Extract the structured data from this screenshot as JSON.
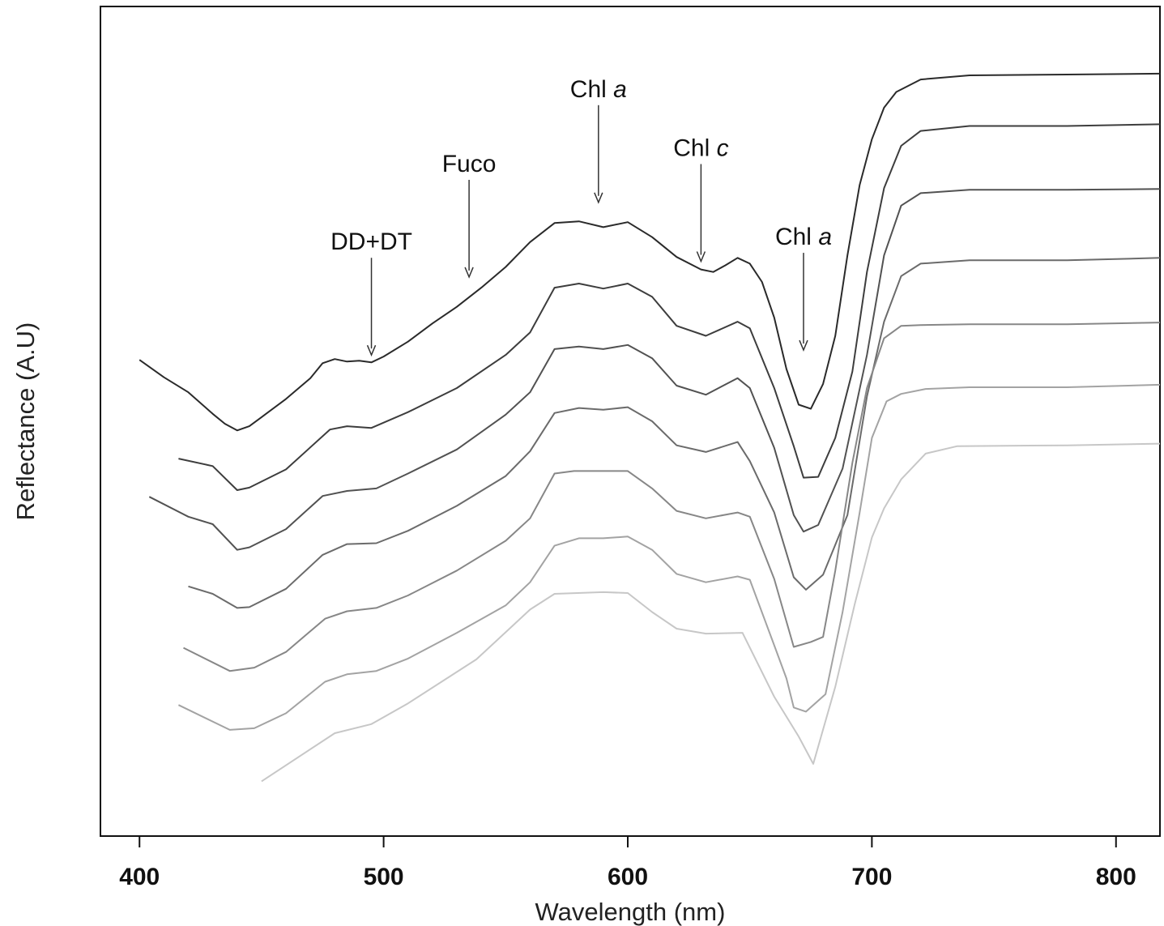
{
  "chart_data": {
    "type": "line",
    "title": "",
    "xlabel": "Wavelength (nm)",
    "ylabel": "Reflectance (A.U)",
    "xlim": [
      384,
      818
    ],
    "ylim": [
      0,
      1000
    ],
    "xticks": [
      400,
      500,
      600,
      700,
      800
    ],
    "grid": false,
    "legend": "none",
    "series": [
      {
        "color": "#2a2a2a",
        "points": [
          [
            400,
            574
          ],
          [
            410,
            553
          ],
          [
            420,
            535
          ],
          [
            430,
            509
          ],
          [
            435,
            497
          ],
          [
            440,
            489
          ],
          [
            445,
            494
          ],
          [
            450,
            505
          ],
          [
            460,
            527
          ],
          [
            470,
            552
          ],
          [
            475,
            570
          ],
          [
            480,
            575
          ],
          [
            485,
            572
          ],
          [
            490,
            573
          ],
          [
            495,
            571
          ],
          [
            500,
            578
          ],
          [
            510,
            596
          ],
          [
            520,
            618
          ],
          [
            530,
            638
          ],
          [
            540,
            661
          ],
          [
            550,
            686
          ],
          [
            560,
            716
          ],
          [
            570,
            739
          ],
          [
            580,
            741
          ],
          [
            590,
            734
          ],
          [
            600,
            740
          ],
          [
            610,
            722
          ],
          [
            620,
            698
          ],
          [
            630,
            683
          ],
          [
            635,
            680
          ],
          [
            640,
            688
          ],
          [
            645,
            697
          ],
          [
            650,
            690
          ],
          [
            655,
            668
          ],
          [
            660,
            625
          ],
          [
            665,
            563
          ],
          [
            670,
            520
          ],
          [
            675,
            515
          ],
          [
            680,
            545
          ],
          [
            685,
            603
          ],
          [
            690,
            700
          ],
          [
            695,
            785
          ],
          [
            700,
            840
          ],
          [
            705,
            878
          ],
          [
            710,
            897
          ],
          [
            720,
            912
          ],
          [
            740,
            917
          ],
          [
            780,
            918
          ],
          [
            818,
            919
          ]
        ]
      },
      {
        "color": "#3d3d3d",
        "points": [
          [
            416,
            455
          ],
          [
            430,
            446
          ],
          [
            440,
            417
          ],
          [
            445,
            420
          ],
          [
            460,
            442
          ],
          [
            478,
            490
          ],
          [
            485,
            494
          ],
          [
            495,
            492
          ],
          [
            510,
            511
          ],
          [
            530,
            540
          ],
          [
            550,
            580
          ],
          [
            560,
            607
          ],
          [
            570,
            661
          ],
          [
            580,
            666
          ],
          [
            590,
            660
          ],
          [
            600,
            666
          ],
          [
            610,
            650
          ],
          [
            620,
            615
          ],
          [
            632,
            603
          ],
          [
            645,
            620
          ],
          [
            650,
            612
          ],
          [
            660,
            540
          ],
          [
            668,
            470
          ],
          [
            672,
            432
          ],
          [
            678,
            433
          ],
          [
            685,
            480
          ],
          [
            692,
            560
          ],
          [
            698,
            680
          ],
          [
            705,
            781
          ],
          [
            712,
            832
          ],
          [
            720,
            850
          ],
          [
            740,
            856
          ],
          [
            780,
            856
          ],
          [
            818,
            858
          ]
        ]
      },
      {
        "color": "#525252",
        "points": [
          [
            404,
            409
          ],
          [
            420,
            385
          ],
          [
            430,
            376
          ],
          [
            440,
            345
          ],
          [
            445,
            348
          ],
          [
            460,
            370
          ],
          [
            475,
            410
          ],
          [
            485,
            416
          ],
          [
            497,
            419
          ],
          [
            510,
            437
          ],
          [
            530,
            466
          ],
          [
            550,
            508
          ],
          [
            560,
            535
          ],
          [
            570,
            587
          ],
          [
            580,
            590
          ],
          [
            590,
            587
          ],
          [
            600,
            592
          ],
          [
            610,
            576
          ],
          [
            620,
            543
          ],
          [
            632,
            532
          ],
          [
            645,
            552
          ],
          [
            650,
            540
          ],
          [
            660,
            468
          ],
          [
            668,
            387
          ],
          [
            672,
            367
          ],
          [
            678,
            375
          ],
          [
            688,
            443
          ],
          [
            698,
            580
          ],
          [
            705,
            700
          ],
          [
            712,
            760
          ],
          [
            720,
            775
          ],
          [
            740,
            779
          ],
          [
            780,
            779
          ],
          [
            818,
            780
          ]
        ]
      },
      {
        "color": "#6b6b6b",
        "points": [
          [
            420,
            301
          ],
          [
            430,
            292
          ],
          [
            440,
            275
          ],
          [
            445,
            276
          ],
          [
            460,
            298
          ],
          [
            475,
            339
          ],
          [
            485,
            352
          ],
          [
            497,
            353
          ],
          [
            510,
            368
          ],
          [
            530,
            398
          ],
          [
            550,
            434
          ],
          [
            560,
            464
          ],
          [
            570,
            510
          ],
          [
            580,
            516
          ],
          [
            590,
            514
          ],
          [
            600,
            517
          ],
          [
            610,
            500
          ],
          [
            620,
            471
          ],
          [
            632,
            463
          ],
          [
            645,
            475
          ],
          [
            650,
            452
          ],
          [
            660,
            390
          ],
          [
            668,
            312
          ],
          [
            673,
            297
          ],
          [
            680,
            315
          ],
          [
            690,
            387
          ],
          [
            698,
            530
          ],
          [
            705,
            620
          ],
          [
            712,
            675
          ],
          [
            720,
            690
          ],
          [
            740,
            694
          ],
          [
            780,
            694
          ],
          [
            818,
            697
          ]
        ]
      },
      {
        "color": "#878787",
        "points": [
          [
            418,
            227
          ],
          [
            437,
            199
          ],
          [
            447,
            203
          ],
          [
            460,
            222
          ],
          [
            476,
            262
          ],
          [
            485,
            271
          ],
          [
            497,
            275
          ],
          [
            510,
            290
          ],
          [
            530,
            320
          ],
          [
            550,
            356
          ],
          [
            560,
            383
          ],
          [
            570,
            437
          ],
          [
            578,
            440
          ],
          [
            590,
            440
          ],
          [
            600,
            440
          ],
          [
            610,
            419
          ],
          [
            620,
            392
          ],
          [
            632,
            383
          ],
          [
            645,
            390
          ],
          [
            650,
            385
          ],
          [
            660,
            310
          ],
          [
            668,
            228
          ],
          [
            675,
            234
          ],
          [
            680,
            240
          ],
          [
            685,
            320
          ],
          [
            692,
            450
          ],
          [
            698,
            540
          ],
          [
            705,
            600
          ],
          [
            712,
            615
          ],
          [
            720,
            616
          ],
          [
            740,
            617
          ],
          [
            780,
            617
          ],
          [
            818,
            619
          ]
        ]
      },
      {
        "color": "#a3a3a3",
        "points": [
          [
            416,
            158
          ],
          [
            437,
            128
          ],
          [
            447,
            130
          ],
          [
            460,
            148
          ],
          [
            476,
            186
          ],
          [
            485,
            195
          ],
          [
            497,
            199
          ],
          [
            510,
            214
          ],
          [
            530,
            245
          ],
          [
            550,
            278
          ],
          [
            560,
            306
          ],
          [
            570,
            350
          ],
          [
            580,
            359
          ],
          [
            590,
            359
          ],
          [
            600,
            361
          ],
          [
            610,
            345
          ],
          [
            620,
            316
          ],
          [
            632,
            306
          ],
          [
            645,
            313
          ],
          [
            650,
            309
          ],
          [
            660,
            230
          ],
          [
            665,
            190
          ],
          [
            668,
            155
          ],
          [
            673,
            150
          ],
          [
            681,
            171
          ],
          [
            688,
            270
          ],
          [
            695,
            390
          ],
          [
            700,
            480
          ],
          [
            706,
            524
          ],
          [
            712,
            533
          ],
          [
            722,
            539
          ],
          [
            740,
            541
          ],
          [
            780,
            541
          ],
          [
            818,
            544
          ]
        ]
      },
      {
        "color": "#c7c7c7",
        "points": [
          [
            450,
            66
          ],
          [
            480,
            124
          ],
          [
            495,
            135
          ],
          [
            510,
            160
          ],
          [
            538,
            213
          ],
          [
            560,
            273
          ],
          [
            570,
            292
          ],
          [
            590,
            294
          ],
          [
            600,
            293
          ],
          [
            610,
            270
          ],
          [
            620,
            250
          ],
          [
            632,
            244
          ],
          [
            647,
            245
          ],
          [
            660,
            168
          ],
          [
            670,
            120
          ],
          [
            676,
            87
          ],
          [
            685,
            180
          ],
          [
            693,
            280
          ],
          [
            700,
            360
          ],
          [
            705,
            395
          ],
          [
            712,
            430
          ],
          [
            722,
            461
          ],
          [
            735,
            470
          ],
          [
            780,
            471
          ],
          [
            818,
            473
          ]
        ]
      }
    ],
    "annotations": [
      {
        "label": "DD+DT",
        "text_main": "DD+DT",
        "text_italic": "",
        "x": 495,
        "y": 574
      },
      {
        "label": "Fuco",
        "text_main": "Fuco",
        "text_italic": "",
        "x": 535,
        "y": 668
      },
      {
        "label": "Chl a",
        "text_main": "Chl ",
        "text_italic": "a",
        "x": 588,
        "y": 758
      },
      {
        "label": "Chl c",
        "text_main": "Chl ",
        "text_italic": "c",
        "x": 630,
        "y": 687
      },
      {
        "label": "Chl a",
        "text_main": "Chl ",
        "text_italic": "a",
        "x": 672,
        "y": 580
      }
    ]
  }
}
